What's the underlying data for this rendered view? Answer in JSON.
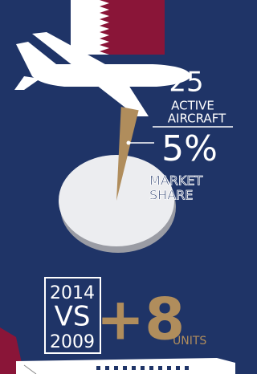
{
  "aircraft": {
    "count": "25",
    "label_lines": [
      "ACTIVE",
      "AIRCRAFT"
    ]
  },
  "market_share": {
    "value": 5,
    "value_label": "5%",
    "label_lines": [
      "MARKET",
      "SHARE"
    ]
  },
  "comparison": {
    "years": [
      "2014",
      "VS",
      "2009"
    ],
    "change": "+8",
    "unit": "UNITS"
  }
}
